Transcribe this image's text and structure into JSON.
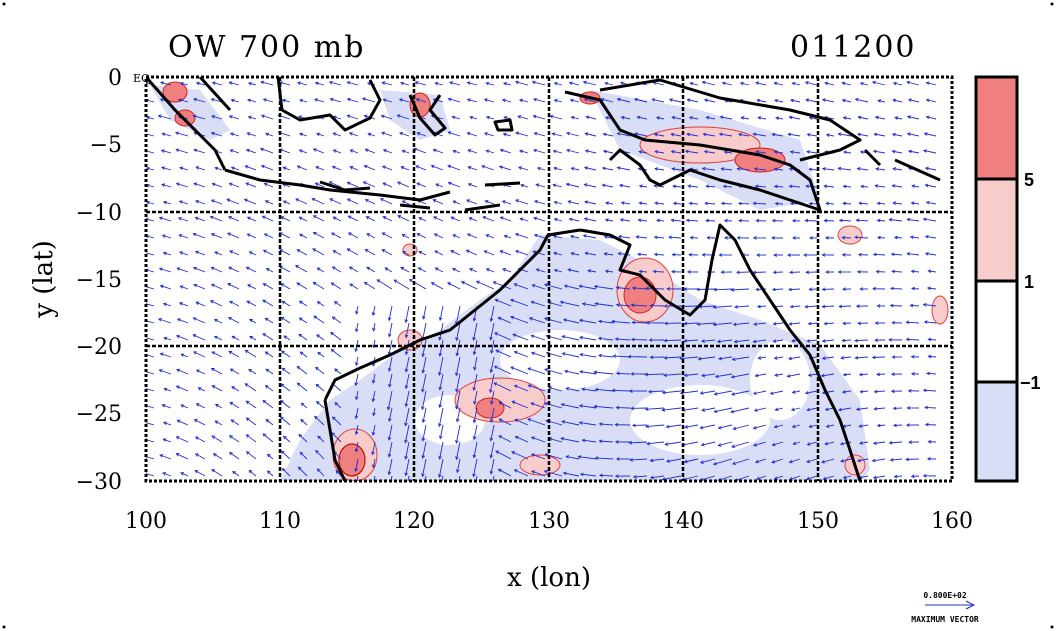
{
  "map": {
    "title_left": "OW 700 mb",
    "title_right": "011200",
    "x_axis_label": "x (lon)",
    "y_axis_label": "y (lat)",
    "x_ticks": [
      "100",
      "110",
      "120",
      "130",
      "140",
      "150",
      "160"
    ],
    "y_ticks": [
      "0",
      "−5",
      "−10",
      "−15",
      "−20",
      "−25",
      "−30"
    ],
    "x_range": [
      100,
      160
    ],
    "y_range": [
      -30,
      0
    ],
    "gridline_lons": [
      110,
      120,
      130,
      140,
      150
    ],
    "gridline_lats": [
      -10,
      -20
    ],
    "corner_label": "EQ",
    "colors": {
      "positive_strong": "#f08080",
      "positive_weak": "#f9cccc",
      "neutral": "#ffffff",
      "negative": "#d9ddf5",
      "wind_vectors": "#1f2fd0",
      "coast": "#000000"
    }
  },
  "colorbar": {
    "labels": [
      "5",
      "1",
      "−1"
    ],
    "levels": [
      {
        "range": "> 5",
        "color": "#f08080"
      },
      {
        "range": "1 to 5",
        "color": "#f9cccc"
      },
      {
        "range": "−1 to 1",
        "color": "#ffffff"
      },
      {
        "range": "< −1",
        "color": "#d9ddf5"
      }
    ]
  },
  "legend": {
    "magnitude": "0.800E+02",
    "caption": "MAXIMUM VECTOR"
  },
  "icons": [
    "wind-vector-arrow-icon"
  ]
}
